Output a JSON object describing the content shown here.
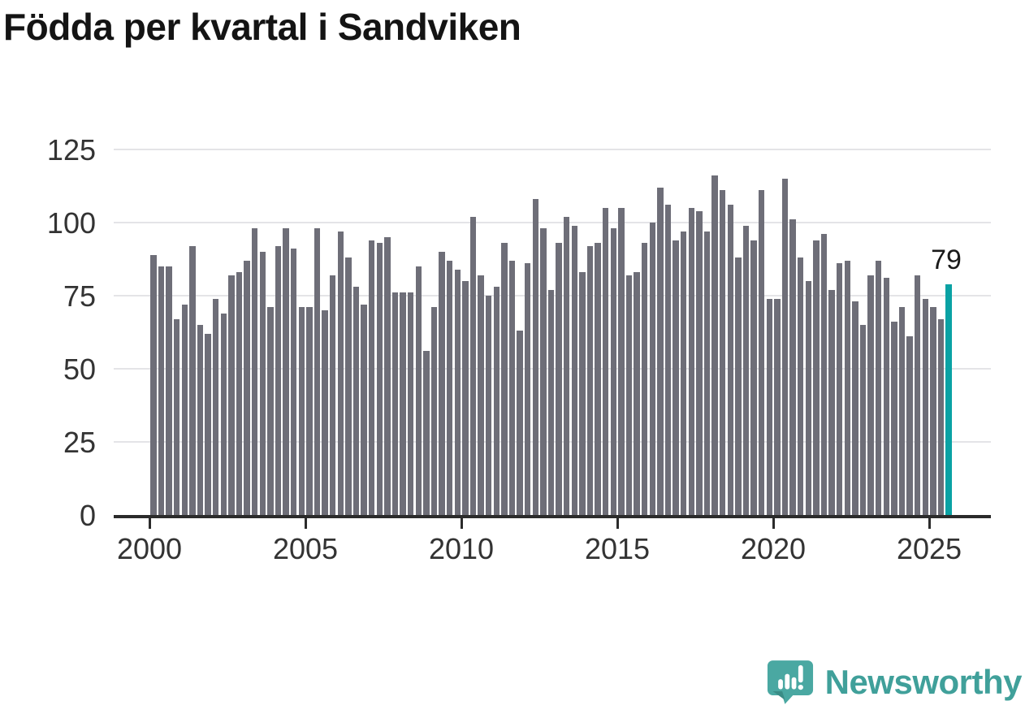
{
  "title": "Födda per kvartal i Sandviken",
  "footer": {
    "brand": "Newsworthy"
  },
  "colors": {
    "bar": "#6E6E78",
    "highlight": "#0AA2A4",
    "gridline": "#E4E4E7",
    "axis": "#2B2B2B",
    "tick_text": "#333333",
    "title_text": "#141414",
    "logo_teal": "#4AA8A2",
    "logo_text_teal": "#40A09A"
  },
  "chart_data": {
    "type": "bar",
    "title": "Födda per kvartal i Sandviken",
    "xlabel": "",
    "ylabel": "",
    "ylim": [
      0,
      131
    ],
    "grid": "horizontal",
    "legend": "none",
    "y_ticks": [
      0,
      25,
      50,
      75,
      100,
      125
    ],
    "x_tick_labels": [
      "2000",
      "2005",
      "2010",
      "2015",
      "2020",
      "2025"
    ],
    "frequency": "quarterly",
    "x_start": "2000 Q1",
    "x_end": "2025 Q3",
    "years": [
      {
        "year": 2000,
        "values": [
          89,
          85,
          85,
          67
        ]
      },
      {
        "year": 2001,
        "values": [
          72,
          92,
          65,
          62
        ]
      },
      {
        "year": 2002,
        "values": [
          74,
          69,
          82,
          83
        ]
      },
      {
        "year": 2003,
        "values": [
          87,
          98,
          90,
          71
        ]
      },
      {
        "year": 2004,
        "values": [
          92,
          98,
          91,
          71
        ]
      },
      {
        "year": 2005,
        "values": [
          71,
          98,
          70,
          82
        ]
      },
      {
        "year": 2006,
        "values": [
          97,
          88,
          78,
          72
        ]
      },
      {
        "year": 2007,
        "values": [
          94,
          93,
          95,
          76
        ]
      },
      {
        "year": 2008,
        "values": [
          76,
          76,
          85,
          56
        ]
      },
      {
        "year": 2009,
        "values": [
          71,
          90,
          87,
          84
        ]
      },
      {
        "year": 2010,
        "values": [
          80,
          102,
          82,
          75
        ]
      },
      {
        "year": 2011,
        "values": [
          78,
          93,
          87,
          63
        ]
      },
      {
        "year": 2012,
        "values": [
          86,
          108,
          98,
          77
        ]
      },
      {
        "year": 2013,
        "values": [
          93,
          102,
          99,
          83
        ]
      },
      {
        "year": 2014,
        "values": [
          92,
          93,
          105,
          98
        ]
      },
      {
        "year": 2015,
        "values": [
          105,
          82,
          83,
          93
        ]
      },
      {
        "year": 2016,
        "values": [
          100,
          112,
          106,
          94
        ]
      },
      {
        "year": 2017,
        "values": [
          97,
          105,
          104,
          97
        ]
      },
      {
        "year": 2018,
        "values": [
          116,
          111,
          106,
          88
        ]
      },
      {
        "year": 2019,
        "values": [
          99,
          94,
          111,
          74
        ]
      },
      {
        "year": 2020,
        "values": [
          74,
          115,
          101,
          88
        ]
      },
      {
        "year": 2021,
        "values": [
          80,
          94,
          96,
          77
        ]
      },
      {
        "year": 2022,
        "values": [
          86,
          87,
          73,
          65
        ]
      },
      {
        "year": 2023,
        "values": [
          82,
          87,
          81,
          66
        ]
      },
      {
        "year": 2024,
        "values": [
          71,
          61,
          82,
          74
        ]
      },
      {
        "year": 2025,
        "values": [
          71,
          67,
          79
        ]
      }
    ],
    "highlight": {
      "quarter": "2025 Q3",
      "value": 79,
      "label": "79"
    }
  }
}
